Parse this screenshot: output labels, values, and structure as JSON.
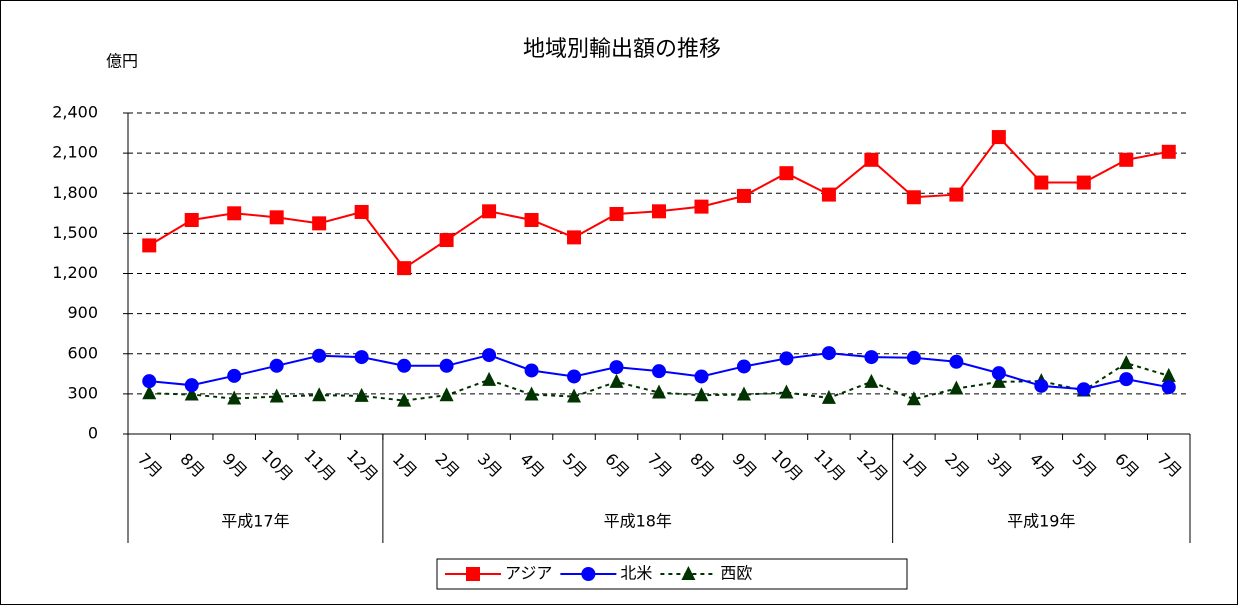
{
  "chart_data": {
    "type": "line",
    "title": "地域別輸出額の推移",
    "y_unit": "億円",
    "groups": [
      {
        "name": "平成17年",
        "categories": [
          "7月",
          "8月",
          "9月",
          "10月",
          "11月",
          "12月"
        ]
      },
      {
        "name": "平成18年",
        "categories": [
          "1月",
          "2月",
          "3月",
          "4月",
          "5月",
          "6月",
          "7月",
          "8月",
          "9月",
          "10月",
          "11月",
          "12月"
        ]
      },
      {
        "name": "平成19年",
        "categories": [
          "1月",
          "2月",
          "3月",
          "4月",
          "5月",
          "6月",
          "7月"
        ]
      }
    ],
    "series": [
      {
        "name": "アジア",
        "color": "#ff0000",
        "marker": "square",
        "dash": false,
        "values": [
          1410,
          1600,
          1650,
          1620,
          1575,
          1660,
          1240,
          1450,
          1665,
          1600,
          1470,
          1645,
          1665,
          1700,
          1780,
          1950,
          1790,
          2050,
          1770,
          1790,
          2220,
          1880,
          1880,
          2050,
          2110
        ]
      },
      {
        "name": "北米",
        "color": "#0000ff",
        "marker": "circle",
        "dash": false,
        "values": [
          395,
          365,
          435,
          510,
          585,
          575,
          510,
          510,
          590,
          475,
          430,
          500,
          470,
          430,
          505,
          565,
          605,
          575,
          570,
          540,
          455,
          360,
          335,
          410,
          350
        ]
      },
      {
        "name": "西欧",
        "color": "#003300",
        "marker": "triangle",
        "dash": true,
        "values": [
          305,
          295,
          265,
          280,
          290,
          285,
          250,
          290,
          405,
          295,
          280,
          390,
          310,
          290,
          295,
          310,
          270,
          390,
          260,
          340,
          390,
          395,
          325,
          530,
          435
        ]
      }
    ],
    "ylim": [
      0,
      2400
    ],
    "yticks": [
      0,
      300,
      600,
      900,
      {
        "value": 1200,
        "label": "1,200"
      },
      {
        "value": 1500,
        "label": "1,500"
      },
      {
        "value": 1800,
        "label": "1,800"
      },
      {
        "value": 2100,
        "label": "2,100"
      },
      {
        "value": 2400,
        "label": "2,400"
      }
    ],
    "grid": true,
    "legend": "bottom"
  }
}
